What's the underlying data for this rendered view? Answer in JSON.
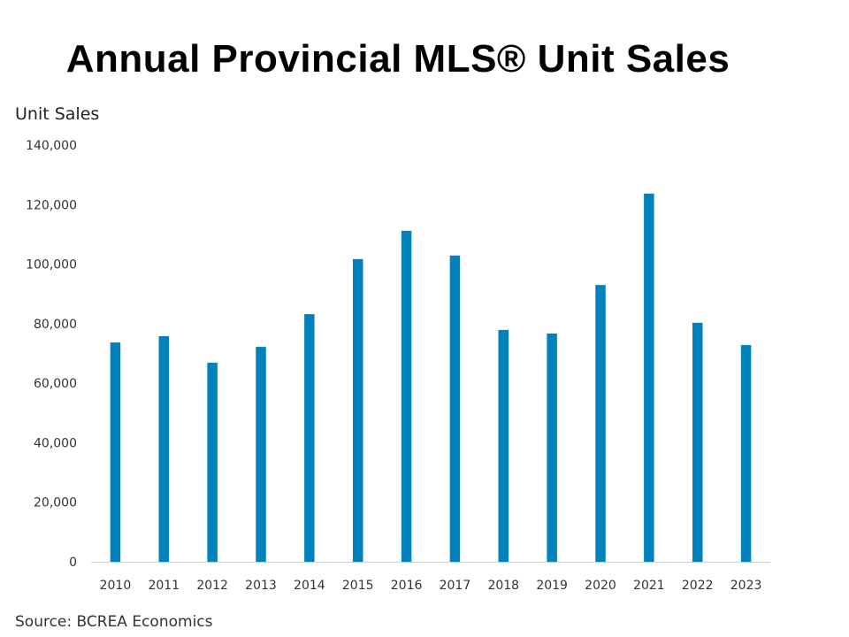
{
  "chart_data": {
    "type": "bar",
    "title": "Annual Provincial MLS® Unit Sales",
    "ylabel": "Unit Sales",
    "xlabel": "",
    "categories": [
      "2010",
      "2011",
      "2012",
      "2013",
      "2014",
      "2015",
      "2016",
      "2017",
      "2018",
      "2019",
      "2020",
      "2021",
      "2022",
      "2023"
    ],
    "values": [
      73700,
      75800,
      66900,
      72200,
      83200,
      101700,
      111200,
      102900,
      77900,
      76700,
      93000,
      123700,
      80300,
      72800
    ],
    "ylim": [
      0,
      140000
    ],
    "yticks": [
      0,
      20000,
      40000,
      60000,
      80000,
      100000,
      120000,
      140000
    ],
    "ytick_labels": [
      "0",
      "20,000",
      "40,000",
      "60,000",
      "80,000",
      "100,000",
      "120,000",
      "140,000"
    ],
    "grid": false,
    "bar_color": "#0083BD",
    "source": "Source: BCREA Economics"
  }
}
